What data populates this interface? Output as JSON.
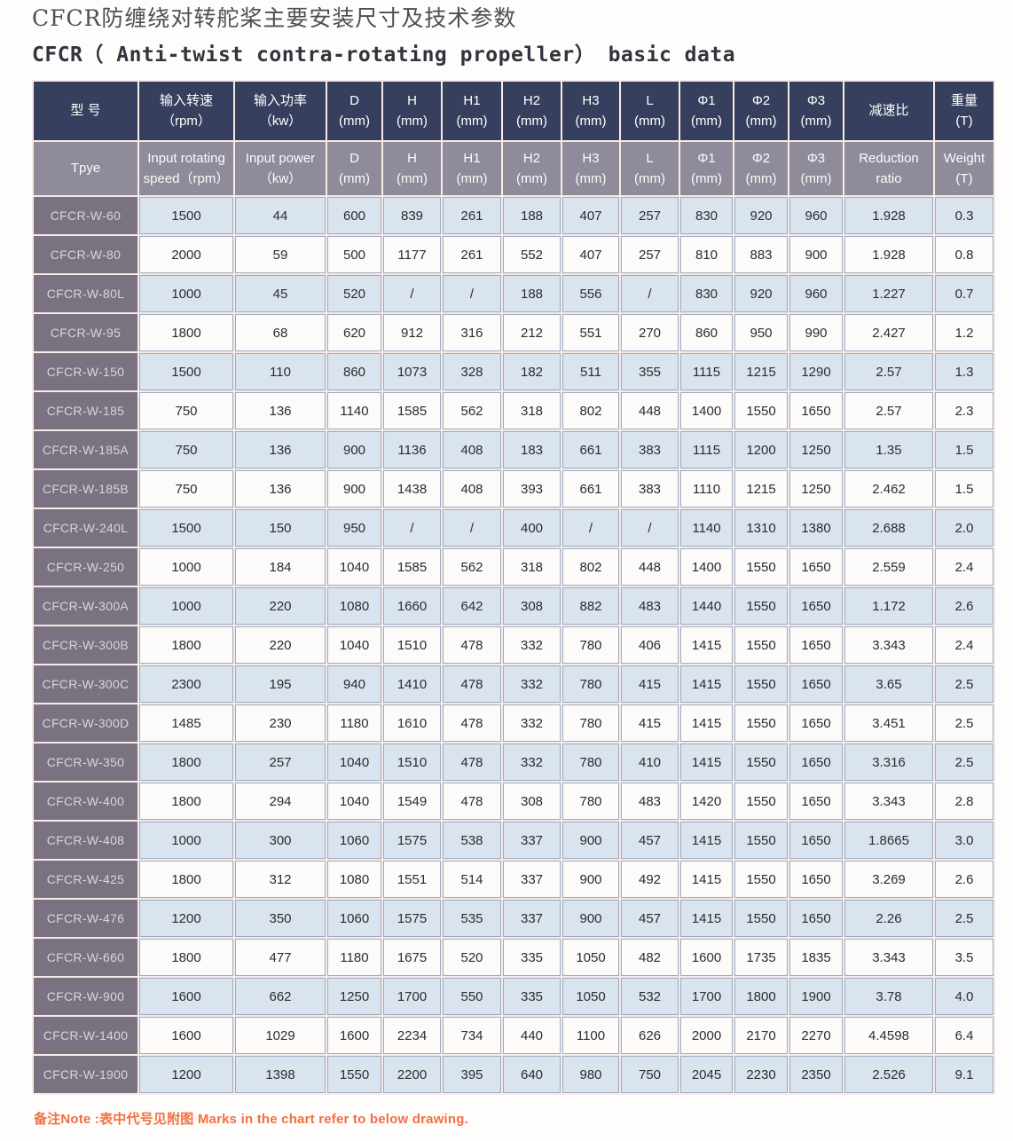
{
  "page": {
    "title_zh": "CFCR防缠绕对转舵桨主要安装尺寸及技术参数",
    "title_en": "CFCR（ Anti-twist contra-rotating propeller） basic data",
    "note": "备注Note :表中代号见附图 Marks in the chart refer to below drawing."
  },
  "colors": {
    "header_row1_bg": "#373f5e",
    "header_row2_bg": "#8f8b9a",
    "model_column_bg": "#7a7281",
    "row_blue_bg": "#d9e4ef",
    "row_white_bg": "#fdfbfa",
    "cell_border": "#9cabc3",
    "note_orange": "#f2703f"
  },
  "table": {
    "columns": [
      {
        "zh1": "型 号",
        "zh2": "",
        "en1": "Tpye",
        "en2": ""
      },
      {
        "zh1": "输入转速",
        "zh2": "（rpm）",
        "en1": "Input rotating",
        "en2": "speed（rpm）"
      },
      {
        "zh1": "输入功率",
        "zh2": "（kw）",
        "en1": "Input power",
        "en2": "（kw）"
      },
      {
        "zh1": "D",
        "zh2": "(mm)",
        "en1": "D",
        "en2": "(mm)"
      },
      {
        "zh1": "H",
        "zh2": "(mm)",
        "en1": "H",
        "en2": "(mm)"
      },
      {
        "zh1": "H1",
        "zh2": "(mm)",
        "en1": "H1",
        "en2": "(mm)"
      },
      {
        "zh1": "H2",
        "zh2": "(mm)",
        "en1": "H2",
        "en2": "(mm)"
      },
      {
        "zh1": "H3",
        "zh2": "(mm)",
        "en1": "H3",
        "en2": "(mm)"
      },
      {
        "zh1": "L",
        "zh2": "(mm)",
        "en1": "L",
        "en2": "(mm)"
      },
      {
        "zh1": "Φ1",
        "zh2": "(mm)",
        "en1": "Φ1",
        "en2": "(mm)"
      },
      {
        "zh1": "Φ2",
        "zh2": "(mm)",
        "en1": "Φ2",
        "en2": "(mm)"
      },
      {
        "zh1": "Φ3",
        "zh2": "(mm)",
        "en1": "Φ3",
        "en2": "(mm)"
      },
      {
        "zh1": "减速比",
        "zh2": "",
        "en1": "Reduction",
        "en2": "ratio"
      },
      {
        "zh1": "重量",
        "zh2": "(T)",
        "en1": "Weight",
        "en2": "(T)"
      }
    ],
    "rows": [
      {
        "type": "CFCR-W-60",
        "values": [
          "1500",
          "44",
          "600",
          "839",
          "261",
          "188",
          "407",
          "257",
          "830",
          "920",
          "960",
          "1.928",
          "0.3"
        ]
      },
      {
        "type": "CFCR-W-80",
        "values": [
          "2000",
          "59",
          "500",
          "1177",
          "261",
          "552",
          "407",
          "257",
          "810",
          "883",
          "900",
          "1.928",
          "0.8"
        ]
      },
      {
        "type": "CFCR-W-80L",
        "values": [
          "1000",
          "45",
          "520",
          "/",
          "/",
          "188",
          "556",
          "/",
          "830",
          "920",
          "960",
          "1.227",
          "0.7"
        ]
      },
      {
        "type": "CFCR-W-95",
        "values": [
          "1800",
          "68",
          "620",
          "912",
          "316",
          "212",
          "551",
          "270",
          "860",
          "950",
          "990",
          "2.427",
          "1.2"
        ]
      },
      {
        "type": "CFCR-W-150",
        "values": [
          "1500",
          "110",
          "860",
          "1073",
          "328",
          "182",
          "511",
          "355",
          "1115",
          "1215",
          "1290",
          "2.57",
          "1.3"
        ]
      },
      {
        "type": "CFCR-W-185",
        "values": [
          "750",
          "136",
          "1140",
          "1585",
          "562",
          "318",
          "802",
          "448",
          "1400",
          "1550",
          "1650",
          "2.57",
          "2.3"
        ]
      },
      {
        "type": "CFCR-W-185A",
        "values": [
          "750",
          "136",
          "900",
          "1136",
          "408",
          "183",
          "661",
          "383",
          "1115",
          "1200",
          "1250",
          "1.35",
          "1.5"
        ]
      },
      {
        "type": "CFCR-W-185B",
        "values": [
          "750",
          "136",
          "900",
          "1438",
          "408",
          "393",
          "661",
          "383",
          "1110",
          "1215",
          "1250",
          "2.462",
          "1.5"
        ]
      },
      {
        "type": "CFCR-W-240L",
        "values": [
          "1500",
          "150",
          "950",
          "/",
          "/",
          "400",
          "/",
          "/",
          "1140",
          "1310",
          "1380",
          "2.688",
          "2.0"
        ]
      },
      {
        "type": "CFCR-W-250",
        "values": [
          "1000",
          "184",
          "1040",
          "1585",
          "562",
          "318",
          "802",
          "448",
          "1400",
          "1550",
          "1650",
          "2.559",
          "2.4"
        ]
      },
      {
        "type": "CFCR-W-300A",
        "values": [
          "1000",
          "220",
          "1080",
          "1660",
          "642",
          "308",
          "882",
          "483",
          "1440",
          "1550",
          "1650",
          "1.172",
          "2.6"
        ]
      },
      {
        "type": "CFCR-W-300B",
        "values": [
          "1800",
          "220",
          "1040",
          "1510",
          "478",
          "332",
          "780",
          "406",
          "1415",
          "1550",
          "1650",
          "3.343",
          "2.4"
        ]
      },
      {
        "type": "CFCR-W-300C",
        "values": [
          "2300",
          "195",
          "940",
          "1410",
          "478",
          "332",
          "780",
          "415",
          "1415",
          "1550",
          "1650",
          "3.65",
          "2.5"
        ]
      },
      {
        "type": "CFCR-W-300D",
        "values": [
          "1485",
          "230",
          "1180",
          "1610",
          "478",
          "332",
          "780",
          "415",
          "1415",
          "1550",
          "1650",
          "3.451",
          "2.5"
        ]
      },
      {
        "type": "CFCR-W-350",
        "values": [
          "1800",
          "257",
          "1040",
          "1510",
          "478",
          "332",
          "780",
          "410",
          "1415",
          "1550",
          "1650",
          "3.316",
          "2.5"
        ]
      },
      {
        "type": "CFCR-W-400",
        "values": [
          "1800",
          "294",
          "1040",
          "1549",
          "478",
          "308",
          "780",
          "483",
          "1420",
          "1550",
          "1650",
          "3.343",
          "2.8"
        ]
      },
      {
        "type": "CFCR-W-408",
        "values": [
          "1000",
          "300",
          "1060",
          "1575",
          "538",
          "337",
          "900",
          "457",
          "1415",
          "1550",
          "1650",
          "1.8665",
          "3.0"
        ]
      },
      {
        "type": "CFCR-W-425",
        "values": [
          "1800",
          "312",
          "1080",
          "1551",
          "514",
          "337",
          "900",
          "492",
          "1415",
          "1550",
          "1650",
          "3.269",
          "2.6"
        ]
      },
      {
        "type": "CFCR-W-476",
        "values": [
          "1200",
          "350",
          "1060",
          "1575",
          "535",
          "337",
          "900",
          "457",
          "1415",
          "1550",
          "1650",
          "2.26",
          "2.5"
        ]
      },
      {
        "type": "CFCR-W-660",
        "values": [
          "1800",
          "477",
          "1180",
          "1675",
          "520",
          "335",
          "1050",
          "482",
          "1600",
          "1735",
          "1835",
          "3.343",
          "3.5"
        ]
      },
      {
        "type": "CFCR-W-900",
        "values": [
          "1600",
          "662",
          "1250",
          "1700",
          "550",
          "335",
          "1050",
          "532",
          "1700",
          "1800",
          "1900",
          "3.78",
          "4.0"
        ]
      },
      {
        "type": "CFCR-W-1400",
        "values": [
          "1600",
          "1029",
          "1600",
          "2234",
          "734",
          "440",
          "1100",
          "626",
          "2000",
          "2170",
          "2270",
          "4.4598",
          "6.4"
        ]
      },
      {
        "type": "CFCR-W-1900",
        "values": [
          "1200",
          "1398",
          "1550",
          "2200",
          "395",
          "640",
          "980",
          "750",
          "2045",
          "2230",
          "2350",
          "2.526",
          "9.1"
        ]
      }
    ]
  }
}
